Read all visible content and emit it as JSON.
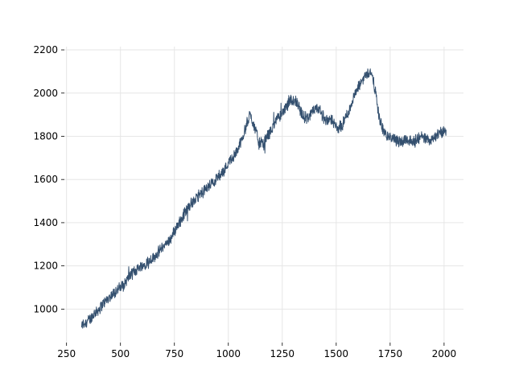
{
  "chart_data": {
    "type": "line",
    "title": "",
    "xlabel": "",
    "ylabel": "",
    "xlim": [
      240,
      2090
    ],
    "ylim": [
      845,
      2215
    ],
    "x_ticks": [
      250,
      500,
      750,
      1000,
      1250,
      1500,
      1750,
      2000
    ],
    "y_ticks": [
      1000,
      1200,
      1400,
      1600,
      1800,
      2000,
      2200
    ],
    "grid": true,
    "legend": "none",
    "colors": {
      "line": "#34506f",
      "grid": "#e6e6e6"
    },
    "series": [
      {
        "x": [
          320,
          340,
          360,
          380,
          400,
          420,
          440,
          460,
          480,
          500,
          520,
          540,
          560,
          580,
          600,
          620,
          640,
          660,
          680,
          700,
          720,
          740,
          760,
          780,
          800,
          820,
          840,
          860,
          880,
          900,
          920,
          940,
          960,
          980,
          1000,
          1020,
          1040,
          1060,
          1080,
          1100,
          1120,
          1140,
          1160,
          1180,
          1200,
          1220,
          1240,
          1260,
          1280,
          1300,
          1320,
          1340,
          1360,
          1380,
          1400,
          1420,
          1440,
          1460,
          1480,
          1500,
          1520,
          1540,
          1560,
          1580,
          1600,
          1620,
          1640,
          1660,
          1680,
          1700,
          1720,
          1740,
          1760,
          1780,
          1800,
          1820,
          1840,
          1860,
          1880,
          1900,
          1920,
          1940,
          1960,
          1980,
          2000,
          2010
        ],
        "values": [
          925,
          940,
          955,
          980,
          1000,
          1025,
          1045,
          1065,
          1085,
          1100,
          1120,
          1150,
          1170,
          1190,
          1200,
          1215,
          1230,
          1245,
          1270,
          1290,
          1310,
          1340,
          1380,
          1410,
          1450,
          1480,
          1500,
          1520,
          1540,
          1560,
          1580,
          1600,
          1620,
          1640,
          1680,
          1700,
          1730,
          1780,
          1840,
          1900,
          1850,
          1780,
          1760,
          1800,
          1830,
          1870,
          1900,
          1920,
          1950,
          1970,
          1960,
          1900,
          1880,
          1900,
          1920,
          1930,
          1890,
          1870,
          1880,
          1840,
          1830,
          1880,
          1920,
          1980,
          2020,
          2060,
          2090,
          2100,
          2020,
          1880,
          1820,
          1800,
          1790,
          1780,
          1770,
          1790,
          1780,
          1775,
          1790,
          1800,
          1780,
          1790,
          1800,
          1810,
          1820,
          1830
        ]
      }
    ]
  }
}
